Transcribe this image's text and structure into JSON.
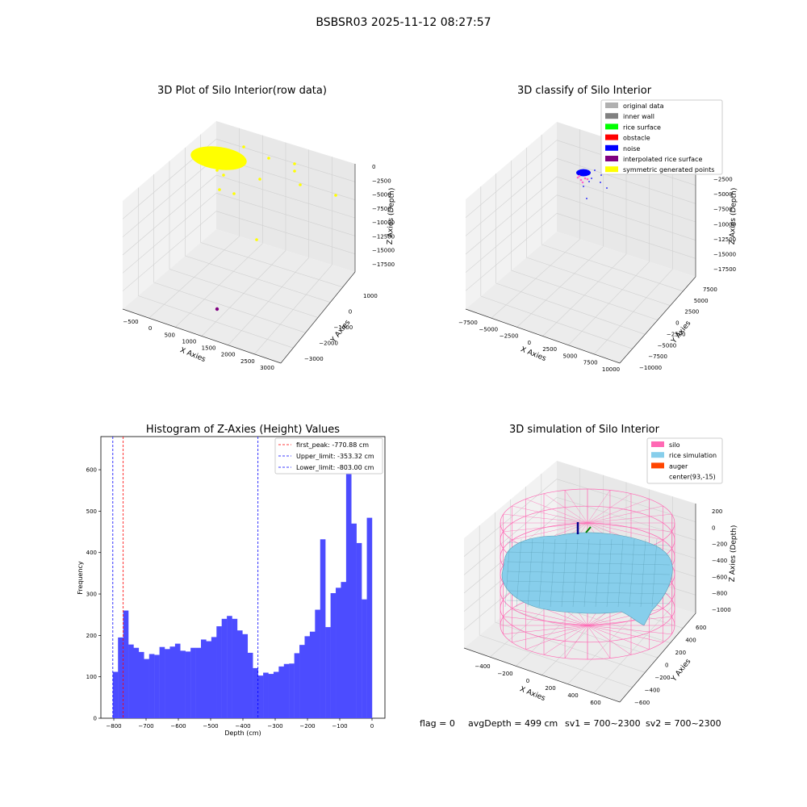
{
  "figure_title": "BSBSR03 2025-11-12 08:27:57",
  "colors": {
    "yellow": "#ffff00",
    "purple": "#800080",
    "blue": "#0000ff",
    "red": "#ff0000",
    "hist_bar": "#4c4cff",
    "silo": "#ff69b4",
    "rice": "#87ceeb",
    "auger": "#ff4500",
    "pane": "#f2f2f2",
    "grid": "#d0d0d0"
  },
  "chart_data": [
    {
      "type": "scatter",
      "projection": "3d",
      "title": "3D Plot of Silo Interior(row data)",
      "xlabel": "X Axies",
      "ylabel": "Y Axies",
      "zlabel": "Z Axies (Depth)",
      "xticks": [
        "−500",
        "0",
        "500",
        "1000",
        "1500",
        "2000",
        "2500",
        "3000"
      ],
      "yticks": [
        "−3000",
        "−2000",
        "−1000",
        "0",
        "1000"
      ],
      "zticks": [
        "0",
        "−2500",
        "−5000",
        "−7500",
        "−10000",
        "−12500",
        "−15000",
        "−17500"
      ],
      "grid": true
    },
    {
      "type": "scatter",
      "projection": "3d",
      "title": "3D classify of Silo Interior",
      "xlabel": "X Axies",
      "ylabel": "Y Axies",
      "zlabel": "Z Axies (Depth)",
      "xticks": [
        "−7500",
        "−5000",
        "−2500",
        "0",
        "2500",
        "5000",
        "7500",
        "10000"
      ],
      "yticks": [
        "−10000",
        "−7500",
        "−5000",
        "−2500",
        "0",
        "2500",
        "5000",
        "7500"
      ],
      "zticks": [
        "0",
        "−2500",
        "−5000",
        "−7500",
        "−10000",
        "−12500",
        "−15000",
        "−17500"
      ],
      "legend_position": "top-right",
      "legend": [
        {
          "label": "original data",
          "color": "#b0b0b0"
        },
        {
          "label": "inner wall",
          "color": "#808080"
        },
        {
          "label": "rice surface",
          "color": "#00ff00"
        },
        {
          "label": "obstacle",
          "color": "#ff0000"
        },
        {
          "label": "noise",
          "color": "#0000ff"
        },
        {
          "label": "interpolated rice surface",
          "color": "#800080"
        },
        {
          "label": "symmetric generated points",
          "color": "#ffff00"
        }
      ],
      "grid": true
    },
    {
      "type": "bar",
      "title": "Histogram of Z-Axies (Height) Values",
      "xlabel": "Depth (cm)",
      "ylabel": "Frequency",
      "xlim": [
        -840,
        40
      ],
      "ylim": [
        0,
        680
      ],
      "xticks": [
        "−800",
        "−700",
        "−600",
        "−500",
        "−400",
        "−300",
        "−200",
        "−100",
        "0"
      ],
      "xtick_values": [
        -800,
        -700,
        -600,
        -500,
        -400,
        -300,
        -200,
        -100,
        0
      ],
      "yticks": [
        "0",
        "100",
        "200",
        "300",
        "400",
        "500",
        "600"
      ],
      "ytick_values": [
        0,
        100,
        200,
        300,
        400,
        500,
        600
      ],
      "bin_start": -803,
      "bin_width": 16.06,
      "values": [
        112,
        195,
        260,
        178,
        170,
        160,
        143,
        155,
        153,
        172,
        167,
        173,
        180,
        163,
        161,
        170,
        170,
        190,
        186,
        196,
        222,
        240,
        247,
        240,
        212,
        203,
        158,
        121,
        103,
        110,
        107,
        112,
        125,
        131,
        132,
        157,
        177,
        198,
        209,
        262,
        432,
        220,
        302,
        315,
        329,
        619,
        470,
        423,
        287,
        484
      ],
      "vlines": [
        {
          "label": "first_peak: -770.88 cm",
          "x": -770.88,
          "color": "#ff0000"
        },
        {
          "label": "Upper_limit: -353.32 cm",
          "x": -353.32,
          "color": "#0000ff"
        },
        {
          "label": "Lower_limit: -803.00 cm",
          "x": -803.0,
          "color": "#0000ff"
        }
      ],
      "legend_position": "top-right"
    },
    {
      "type": "surface",
      "projection": "3d",
      "title": "3D simulation of Silo Interior",
      "xlabel": "X Axies",
      "ylabel": "Y Axies",
      "zlabel": "Z Axies (Depth)",
      "xticks": [
        "−400",
        "−200",
        "0",
        "200",
        "400",
        "600"
      ],
      "yticks": [
        "−600",
        "−400",
        "−200",
        "0",
        "200",
        "400",
        "600"
      ],
      "zticks": [
        "200",
        "0",
        "−200",
        "−400",
        "−600",
        "−800",
        "−1000"
      ],
      "legend_position": "top-right",
      "legend": [
        {
          "label": "silo",
          "color": "#ff69b4"
        },
        {
          "label": "rice simulation",
          "color": "#87ceeb"
        },
        {
          "label": "auger",
          "color": "#ff4500"
        },
        {
          "label": "center(93,-15)",
          "color": ""
        }
      ],
      "grid": true
    }
  ],
  "status_line": {
    "flag": "flag = 0",
    "avg_depth": "avgDepth = 499 cm",
    "sv1": "sv1 = 700~2300",
    "sv2": "sv2 = 700~2300"
  }
}
